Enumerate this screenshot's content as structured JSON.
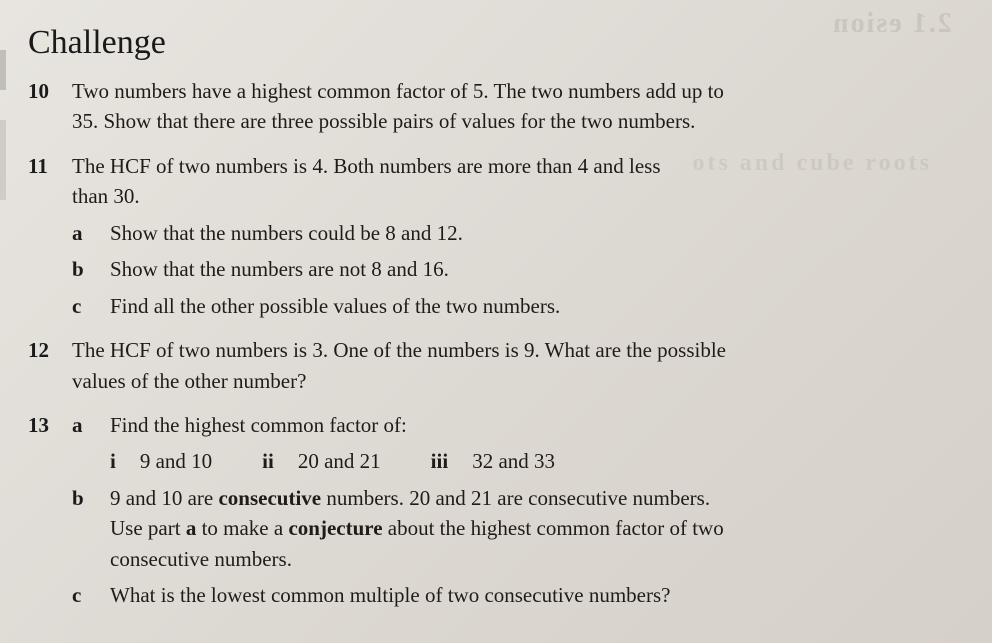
{
  "ghost1": "2.1 esion",
  "ghost2": "ots and cube roots",
  "heading": "Challenge",
  "q10": {
    "num": "10",
    "line1": "Two numbers have a highest common factor of 5. The two numbers add up to",
    "line2": "35. Show that there are three possible pairs of values for the two numbers."
  },
  "q11": {
    "num": "11",
    "line1": "The HCF of two numbers is 4. Both numbers are more than 4 and less",
    "line2": "than 30.",
    "a": {
      "label": "a",
      "text": "Show that the numbers could be 8 and 12."
    },
    "b": {
      "label": "b",
      "text": "Show that the numbers are not 8 and 16."
    },
    "c": {
      "label": "c",
      "text": "Find all the other possible values of the two numbers."
    }
  },
  "q12": {
    "num": "12",
    "line1": "The HCF of two numbers is 3. One of the numbers is 9. What are the possible",
    "line2": "values of the other number?"
  },
  "q13": {
    "num": "13",
    "a": {
      "label": "a",
      "text": "Find the highest common factor of:",
      "i": {
        "label": "i",
        "text": "9 and 10"
      },
      "ii": {
        "label": "ii",
        "text": "20 and 21"
      },
      "iii": {
        "label": "iii",
        "text": "32 and 33"
      }
    },
    "b": {
      "label": "b",
      "pre1": "9 and 10 are ",
      "bold1": "consecutive",
      "post1": " numbers. 20 and 21 are consecutive numbers.",
      "pre2": "Use part ",
      "bold2": "a",
      "mid2": " to make a ",
      "bold3": "conjecture",
      "post2": " about the highest common factor of two",
      "line3": "consecutive numbers."
    },
    "c": {
      "label": "c",
      "text": "What is the lowest common multiple of two consecutive numbers?"
    }
  }
}
